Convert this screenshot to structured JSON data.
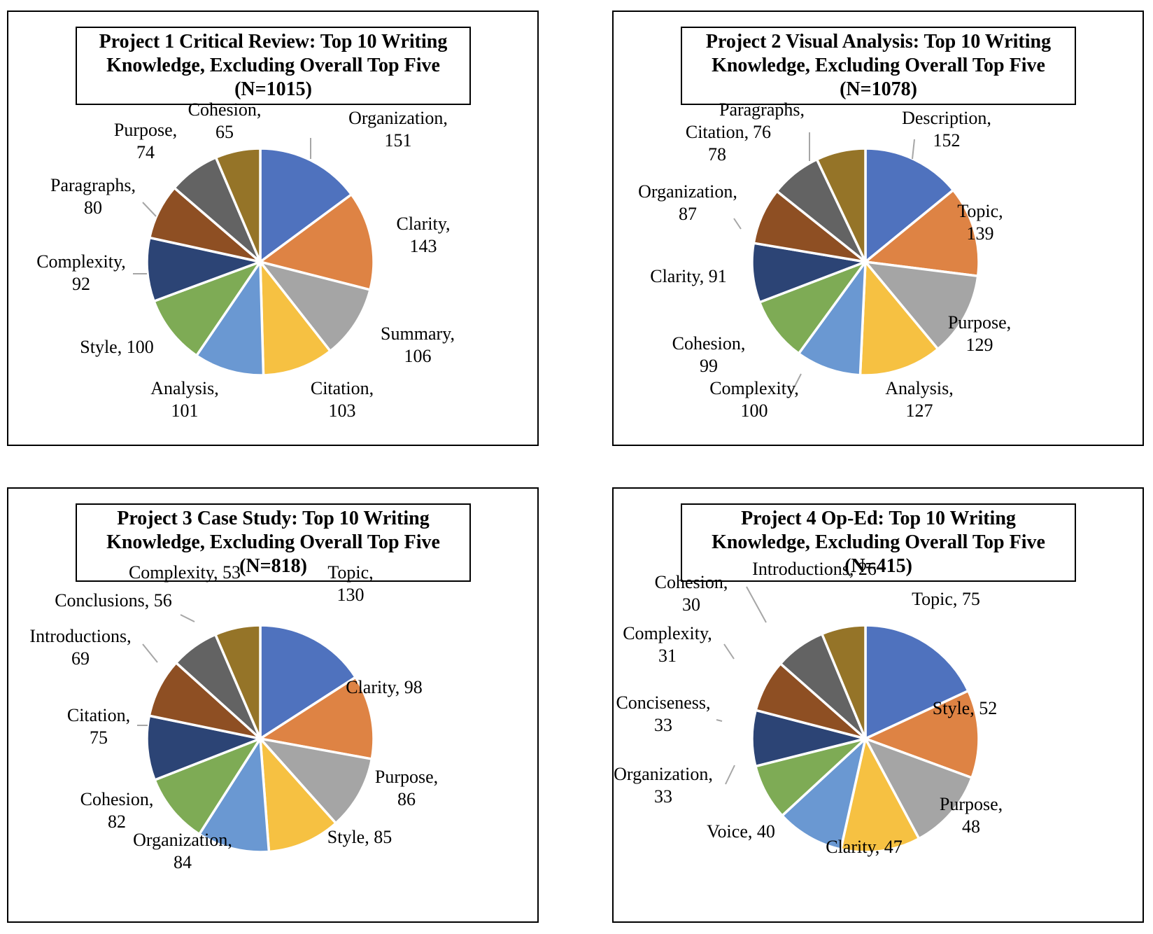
{
  "colors": [
    "#4f72be",
    "#de8344",
    "#a5a5a5",
    "#f6c142",
    "#6a98d2",
    "#7eab55",
    "#2c4475",
    "#8e4f23",
    "#636363",
    "#957428"
  ],
  "chart_data": [
    {
      "type": "pie",
      "title_lines": [
        "Project 1 Critical Review: Top 10 Writing",
        "Knowledge, Excluding Overall Top Five",
        "(N=1015)"
      ],
      "categories": [
        "Organization",
        "Clarity",
        "Summary",
        "Citation",
        "Analysis",
        "Style",
        "Complexity",
        "Paragraphs",
        "Purpose",
        "Cohesion"
      ],
      "values": [
        151,
        143,
        106,
        103,
        101,
        100,
        92,
        80,
        74,
        65
      ],
      "data_labels": [
        [
          "Organization,",
          "151"
        ],
        [
          "Clarity,",
          "143"
        ],
        [
          "Summary,",
          "106"
        ],
        [
          "Citation,",
          "103"
        ],
        [
          "Analysis,",
          "101"
        ],
        [
          "Style, 100"
        ],
        [
          "Complexity,",
          "92"
        ],
        [
          "Paragraphs,",
          "80"
        ],
        [
          "Purpose,",
          "74"
        ],
        [
          "Cohesion,",
          "65"
        ]
      ]
    },
    {
      "type": "pie",
      "title_lines": [
        "Project 2 Visual Analysis: Top 10 Writing",
        "Knowledge, Excluding Overall Top Five",
        "(N=1078)"
      ],
      "categories": [
        "Description",
        "Topic",
        "Purpose",
        "Analysis",
        "Complexity",
        "Cohesion",
        "Clarity",
        "Organization",
        "Citation",
        "Paragraphs"
      ],
      "values": [
        152,
        139,
        129,
        127,
        100,
        99,
        91,
        87,
        78,
        76
      ],
      "data_labels": [
        [
          "Description,",
          "152"
        ],
        [
          "Topic,",
          "139"
        ],
        [
          "Purpose,",
          "129"
        ],
        [
          "Analysis,",
          "127"
        ],
        [
          "Complexity,",
          "100"
        ],
        [
          "Cohesion,",
          "99"
        ],
        [
          "Clarity, 91"
        ],
        [
          "Organization,",
          "87"
        ],
        [
          "Citation,",
          "78"
        ],
        [
          "Paragraphs,",
          "76"
        ]
      ]
    },
    {
      "type": "pie",
      "title_lines": [
        "Project 3 Case Study: Top 10 Writing",
        "Knowledge, Excluding Overall Top Five",
        "(N=818)"
      ],
      "categories": [
        "Topic",
        "Clarity",
        "Purpose",
        "Style",
        "Organization",
        "Cohesion",
        "Citation",
        "Introductions",
        "Conclusions",
        "Complexity"
      ],
      "values": [
        130,
        98,
        86,
        85,
        84,
        82,
        75,
        69,
        56,
        53
      ],
      "data_labels": [
        [
          "Topic,",
          "130"
        ],
        [
          "Clarity, 98"
        ],
        [
          "Purpose,",
          "86"
        ],
        [
          "Style, 85"
        ],
        [
          "Organization,",
          "84"
        ],
        [
          "Cohesion,",
          "82"
        ],
        [
          "Citation,",
          "75"
        ],
        [
          "Introductions,",
          "69"
        ],
        [
          "Conclusions, 56"
        ],
        [
          "Complexity, 53"
        ]
      ]
    },
    {
      "type": "pie",
      "title_lines": [
        "Project 4 Op-Ed: Top 10 Writing",
        "Knowledge, Excluding Overall Top Five",
        "(N=415)"
      ],
      "categories": [
        "Topic",
        "Style",
        "Purpose",
        "Clarity",
        "Voice",
        "Organization",
        "Conciseness",
        "Complexity",
        "Cohesion",
        "Introductions"
      ],
      "values": [
        75,
        52,
        48,
        47,
        40,
        33,
        33,
        31,
        30,
        26
      ],
      "data_labels": [
        [
          "Topic, 75"
        ],
        [
          "Style, 52"
        ],
        [
          "Purpose,",
          "48"
        ],
        [
          "Clarity, 47"
        ],
        [
          "Voice, 40"
        ],
        [
          "Organization,",
          "33"
        ],
        [
          "Conciseness,",
          "33"
        ],
        [
          "Complexity,",
          "31"
        ],
        [
          "Cohesion,",
          "30"
        ],
        [
          "Introductions, 26"
        ]
      ]
    }
  ]
}
